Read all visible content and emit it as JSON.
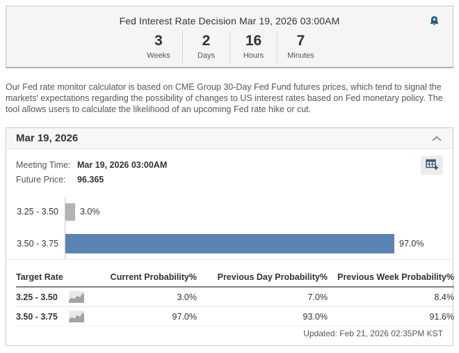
{
  "alert_box": {
    "title": "Fed Interest Rate Decision Mar 19, 2026 03:00AM",
    "countdown": [
      {
        "value": "3",
        "label": "Weeks"
      },
      {
        "value": "2",
        "label": "Days"
      },
      {
        "value": "16",
        "label": "Hours"
      },
      {
        "value": "7",
        "label": "Minutes"
      }
    ]
  },
  "description": "Our Fed rate monitor calculator is based on CME Group 30-Day Fed Fund futures prices, which tend to signal the markets' expectations regarding the possibility of changes to US interest rates based on Fed monetary policy. The tool allows users to calculate the likelihood of an upcoming Fed rate hike or cut.",
  "panel": {
    "title": "Mar 19, 2026",
    "meeting_time_label": "Meeting Time:",
    "meeting_time_value": "Mar 19, 2026 03:00AM",
    "future_price_label": "Future Price:",
    "future_price_value": "96.365",
    "updated": "Updated: Feb 21, 2026 02:35PM KST"
  },
  "chart_data": {
    "type": "bar",
    "orientation": "horizontal",
    "categories": [
      "3.25 - 3.50",
      "3.50 - 3.75"
    ],
    "values": [
      3.0,
      97.0
    ],
    "value_labels": [
      "3.0%",
      "97.0%"
    ],
    "bar_colors": [
      "#b3b3b3",
      "#5b84b4"
    ],
    "xlim": [
      0,
      100
    ],
    "grid": false,
    "legend": false
  },
  "table": {
    "headers": [
      "Target Rate",
      "Current Probability%",
      "Previous Day Probability%",
      "Previous Week Probability%"
    ],
    "rows": [
      {
        "target_rate": "3.25 - 3.50",
        "current": "3.0%",
        "previous_day": "7.0%",
        "previous_week": "8.4%"
      },
      {
        "target_rate": "3.50 - 3.75",
        "current": "97.0%",
        "previous_day": "93.0%",
        "previous_week": "91.6%"
      }
    ]
  },
  "icons": {
    "alert_bell": "bell-plus-icon",
    "collapse": "chevron-up-icon",
    "add_to_calendar": "table-plus-icon",
    "sparkline": "mini-area-chart-icon"
  },
  "colors": {
    "bar_blue": "#5b84b4",
    "bar_gray": "#b3b3b3",
    "bell_blue": "#1d5d91",
    "box_background": "#f5f5f5"
  }
}
